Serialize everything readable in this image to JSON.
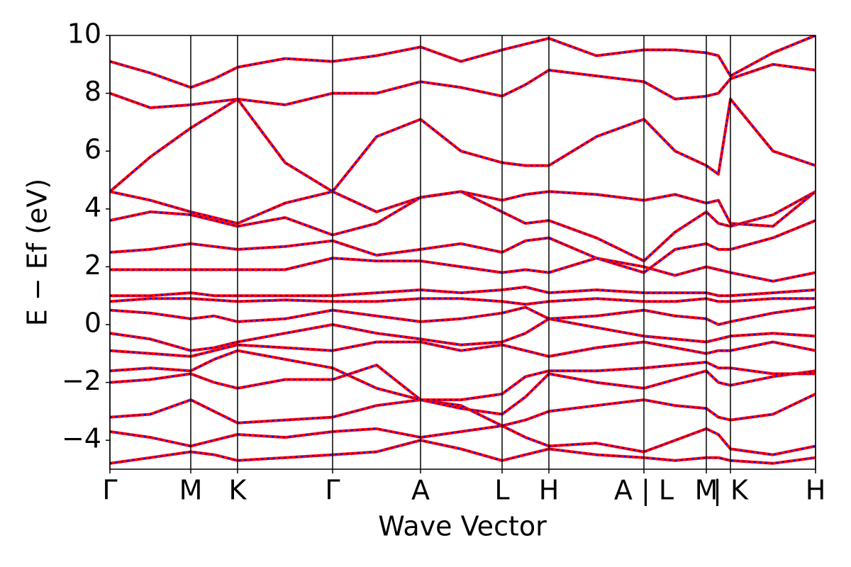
{
  "chart_data": {
    "type": "line",
    "xlabel": "Wave Vector",
    "ylabel": "E − Ef (eV)",
    "xlim": [
      0,
      995
    ],
    "xticks": [
      {
        "value": 0,
        "label": "Γ"
      },
      {
        "value": 114,
        "label": "M"
      },
      {
        "value": 180,
        "label": "K"
      },
      {
        "value": 314,
        "label": "Γ"
      },
      {
        "value": 438,
        "label": "A"
      },
      {
        "value": 553,
        "label": "L"
      },
      {
        "value": 619,
        "label": "H"
      },
      {
        "value": 753,
        "label": "A | L"
      },
      {
        "value": 841,
        "label": "M"
      },
      {
        "value": 875,
        "label": "| K"
      },
      {
        "value": 995,
        "label": "H"
      }
    ],
    "ylim": [
      -5,
      10
    ],
    "yticks": [
      {
        "value": -4,
        "label": "−4"
      },
      {
        "value": -2,
        "label": "−2"
      },
      0,
      2,
      4,
      6,
      8,
      10
    ],
    "dash_color": "#0000ff",
    "x": [
      0,
      57,
      114,
      147,
      180,
      247,
      314,
      376,
      438,
      495,
      553,
      586,
      619,
      686,
      753,
      797,
      841,
      858,
      875,
      935,
      995
    ],
    "series": [
      {
        "color": "#ff0000",
        "values": [
          -4.8,
          -4.6,
          -4.4,
          -4.5,
          -4.7,
          -4.6,
          -4.5,
          -4.4,
          -4.0,
          -4.3,
          -4.7,
          -4.5,
          -4.3,
          -4.5,
          -4.6,
          -4.7,
          -4.6,
          -4.6,
          -4.7,
          -4.8,
          -4.6
        ]
      },
      {
        "color": "#ff0000",
        "values": [
          -3.7,
          -3.9,
          -4.2,
          -4.0,
          -3.8,
          -3.9,
          -3.7,
          -3.6,
          -3.9,
          -3.7,
          -3.5,
          -3.9,
          -4.2,
          -4.1,
          -4.4,
          -4.0,
          -3.6,
          -3.8,
          -4.3,
          -4.5,
          -4.2
        ]
      },
      {
        "color": "#ff0000",
        "values": [
          -3.2,
          -3.1,
          -2.6,
          -3.0,
          -3.4,
          -3.3,
          -3.2,
          -2.8,
          -2.6,
          -2.8,
          -3.5,
          -3.3,
          -3.0,
          -2.8,
          -2.6,
          -2.8,
          -2.9,
          -3.2,
          -3.3,
          -3.1,
          -2.4
        ]
      },
      {
        "color": "#ff0000",
        "values": [
          -2.0,
          -1.9,
          -1.7,
          -2.0,
          -2.2,
          -1.9,
          -1.9,
          -1.4,
          -2.6,
          -2.9,
          -3.1,
          -2.5,
          -1.7,
          -2.0,
          -2.2,
          -1.9,
          -1.6,
          -2.0,
          -2.1,
          -1.8,
          -1.6
        ]
      },
      {
        "color": "#ff0000",
        "values": [
          -1.6,
          -1.5,
          -1.6,
          -1.2,
          -0.9,
          -1.2,
          -1.5,
          -2.2,
          -2.6,
          -2.6,
          -2.4,
          -1.8,
          -1.6,
          -1.6,
          -1.5,
          -1.4,
          -1.3,
          -1.5,
          -1.5,
          -1.7,
          -1.7
        ]
      },
      {
        "color": "#ff0000",
        "values": [
          -0.9,
          -1.0,
          -1.1,
          -0.9,
          -0.7,
          -0.8,
          -0.9,
          -0.6,
          -0.6,
          -0.9,
          -0.7,
          -0.9,
          -1.1,
          -0.8,
          -0.6,
          -0.8,
          -1.0,
          -0.9,
          -0.9,
          -0.6,
          -0.9
        ]
      },
      {
        "color": "#ff0000",
        "values": [
          -0.3,
          -0.5,
          -0.9,
          -0.8,
          -0.6,
          -0.3,
          0.0,
          -0.3,
          -0.5,
          -0.7,
          -0.6,
          -0.3,
          0.2,
          -0.1,
          -0.4,
          -0.5,
          -0.6,
          -0.5,
          -0.4,
          -0.3,
          -0.4
        ]
      },
      {
        "color": "#ff0000",
        "values": [
          0.5,
          0.4,
          0.2,
          0.3,
          0.1,
          0.2,
          0.5,
          0.3,
          0.1,
          0.2,
          0.4,
          0.6,
          0.2,
          0.3,
          0.5,
          0.3,
          0.2,
          0.0,
          0.1,
          0.4,
          0.6
        ]
      },
      {
        "color": "#ff0000",
        "values": [
          0.8,
          0.9,
          0.9,
          0.85,
          0.8,
          0.85,
          0.8,
          0.8,
          0.9,
          0.9,
          0.8,
          0.7,
          0.8,
          0.9,
          0.8,
          0.8,
          0.9,
          0.8,
          0.8,
          0.9,
          0.9
        ]
      },
      {
        "color": "#ff0000",
        "values": [
          1.0,
          1.0,
          1.1,
          1.0,
          1.0,
          1.0,
          1.0,
          1.1,
          1.2,
          1.1,
          1.2,
          1.3,
          1.1,
          1.2,
          1.1,
          1.1,
          1.1,
          1.0,
          1.0,
          1.1,
          1.2
        ]
      },
      {
        "color": "#ff0000",
        "values": [
          1.9,
          1.9,
          1.9,
          1.9,
          1.9,
          1.9,
          2.3,
          2.2,
          2.2,
          2.0,
          1.8,
          1.9,
          1.8,
          2.3,
          2.0,
          1.7,
          2.0,
          1.9,
          1.8,
          1.5,
          1.8
        ]
      },
      {
        "color": "#ff0000",
        "values": [
          2.5,
          2.6,
          2.8,
          2.7,
          2.6,
          2.7,
          2.9,
          2.4,
          2.6,
          2.8,
          2.5,
          2.9,
          3.0,
          2.3,
          1.8,
          2.6,
          2.8,
          2.6,
          2.6,
          3.0,
          3.6
        ]
      },
      {
        "color": "#ff0000",
        "values": [
          3.6,
          3.9,
          3.8,
          3.6,
          3.4,
          3.7,
          3.1,
          3.5,
          4.4,
          4.6,
          3.9,
          3.5,
          3.6,
          3.0,
          2.2,
          3.2,
          3.9,
          3.5,
          3.4,
          3.8,
          4.6
        ]
      },
      {
        "color": "#ff0000",
        "values": [
          4.6,
          4.3,
          3.9,
          3.7,
          3.5,
          4.2,
          4.6,
          3.9,
          4.4,
          4.6,
          4.3,
          4.5,
          4.6,
          4.5,
          4.3,
          4.5,
          4.2,
          4.3,
          3.5,
          3.4,
          4.6
        ]
      },
      {
        "color": "#ff0000",
        "values": [
          4.6,
          5.8,
          6.8,
          7.3,
          7.8,
          5.6,
          4.6,
          6.5,
          7.1,
          6.0,
          5.6,
          5.5,
          5.5,
          6.5,
          7.1,
          6.0,
          5.5,
          5.2,
          7.8,
          6.0,
          5.5
        ]
      },
      {
        "color": "#ff0000",
        "values": [
          8.0,
          7.5,
          7.6,
          7.7,
          7.8,
          7.6,
          8.0,
          8.0,
          8.4,
          8.2,
          7.9,
          8.3,
          8.8,
          8.6,
          8.4,
          7.8,
          7.9,
          8.0,
          8.5,
          9.0,
          8.8
        ]
      },
      {
        "color": "#ff0000",
        "values": [
          9.1,
          8.7,
          8.2,
          8.5,
          8.9,
          9.2,
          9.1,
          9.3,
          9.6,
          9.1,
          9.5,
          9.7,
          9.9,
          9.3,
          9.5,
          9.5,
          9.4,
          9.3,
          8.6,
          9.4,
          10.0
        ]
      }
    ]
  }
}
